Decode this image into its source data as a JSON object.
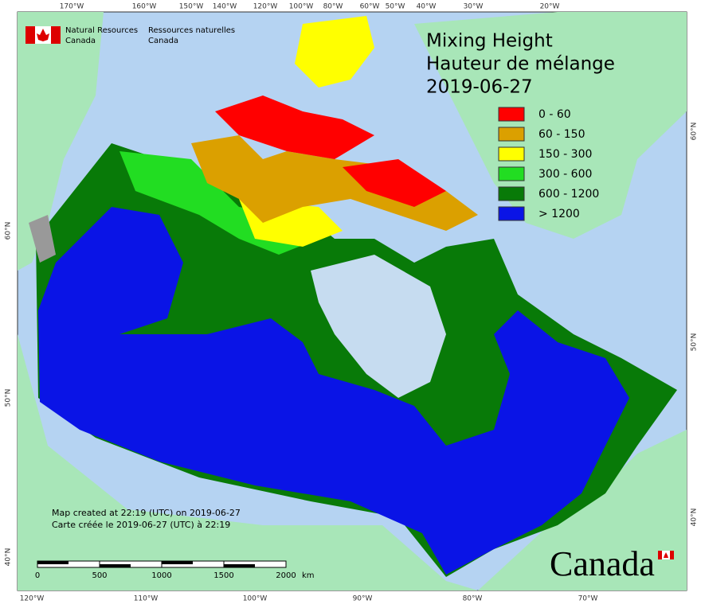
{
  "header": {
    "agency_en": [
      "Natural Resources",
      "Canada"
    ],
    "agency_fr": [
      "Ressources naturelles",
      "Canada"
    ]
  },
  "title": [
    "Mixing Height",
    "Hauteur de mélange",
    "2019-06-27"
  ],
  "legend": [
    {
      "label": "0 - 60",
      "color": "#ff0000"
    },
    {
      "label": "60 - 150",
      "color": "#dba000"
    },
    {
      "label": "150 - 300",
      "color": "#ffff00"
    },
    {
      "label": "300 - 600",
      "color": "#22dd22"
    },
    {
      "label": "600 - 1200",
      "color": "#087a08"
    },
    {
      "label": "> 1200",
      "color": "#0a14e6"
    }
  ],
  "top_labels": [
    "170°W",
    "160°W",
    "150°W",
    "140°W",
    "120°W",
    "100°W",
    "80°W",
    "60°W",
    "50°W",
    "40°W",
    "30°W",
    "20°W"
  ],
  "bottom_labels": [
    "120°W",
    "110°W",
    "100°W",
    "90°W",
    "80°W",
    "70°W"
  ],
  "left_labels": [
    "60°N",
    "50°N",
    "40°N"
  ],
  "right_labels": [
    "60°N",
    "50°N",
    "40°N"
  ],
  "notes": [
    "Map created at 22:19 (UTC) on 2019-06-27",
    "Carte créée le 2019-06-27 (UTC) à 22:19"
  ],
  "scale": {
    "ticks": [
      0,
      500,
      1000,
      1500,
      2000
    ],
    "unit": "km"
  },
  "wordmark": "Canada"
}
